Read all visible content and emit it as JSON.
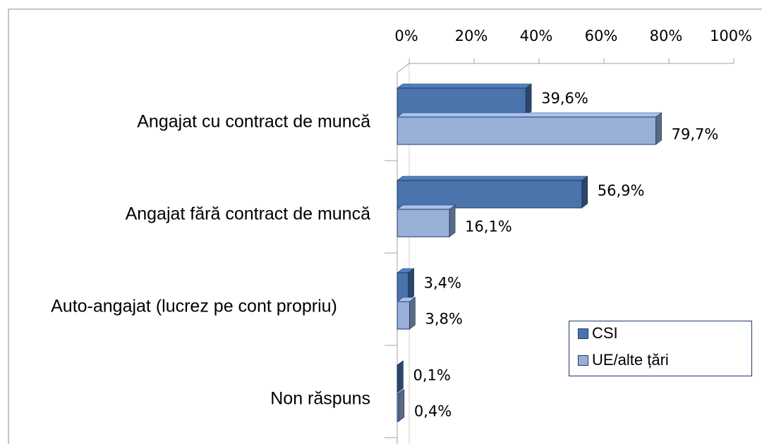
{
  "chart_data": {
    "type": "bar",
    "orientation": "horizontal",
    "categories": [
      "Angajat cu contract de muncă",
      "Angajat fără contract de muncă",
      "Auto-angajat (lucrez pe cont propriu)",
      "Non răspuns"
    ],
    "series": [
      {
        "name": "CSI",
        "color": "#4a74ab",
        "values": [
          39.6,
          56.9,
          3.4,
          0.1
        ],
        "value_labels": [
          "39,6%",
          "56,9%",
          "3,4%",
          "0,1%"
        ]
      },
      {
        "name": "UE/alte țări",
        "color": "#98b0d8",
        "values": [
          79.7,
          16.1,
          3.8,
          0.4
        ],
        "value_labels": [
          "79,7%",
          "16,1%",
          "3,8%",
          "0,4%"
        ]
      }
    ],
    "xlim": [
      0,
      100
    ],
    "xticks": [
      {
        "value": 0,
        "label": "0%"
      },
      {
        "value": 20,
        "label": "20%"
      },
      {
        "value": 40,
        "label": "40%"
      },
      {
        "value": 60,
        "label": "60%"
      },
      {
        "value": 80,
        "label": "80%"
      },
      {
        "value": 100,
        "label": "100%"
      }
    ],
    "legend": "right"
  }
}
